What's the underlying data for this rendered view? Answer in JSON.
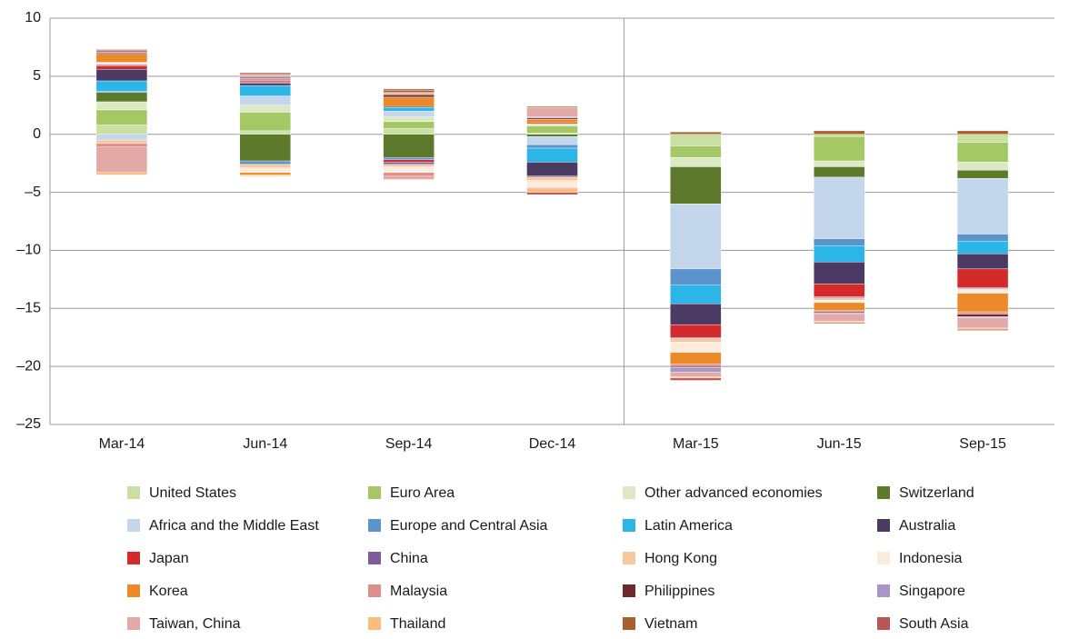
{
  "chart_data": {
    "type": "stacked_bar",
    "categories": [
      "Mar-14",
      "Jun-14",
      "Sep-14",
      "Dec-14",
      "Mar-15",
      "Jun-15",
      "Sep-15"
    ],
    "ylim": [
      -25,
      10
    ],
    "yticks": [
      {
        "value": -25,
        "label": "–25"
      },
      {
        "value": -20,
        "label": "–20"
      },
      {
        "value": -15,
        "label": "–15"
      },
      {
        "value": -10,
        "label": "–10"
      },
      {
        "value": -5,
        "label": "–5"
      },
      0,
      5,
      10
    ],
    "grid": true,
    "series": [
      {
        "name": "United States",
        "color": "#c9dfa4",
        "values": [
          0.8,
          0.3,
          0.5,
          0.1,
          -1.0,
          -0.2,
          -0.7
        ]
      },
      {
        "name": "Euro Area",
        "color": "#a4c964",
        "values": [
          1.3,
          1.6,
          0.6,
          0.6,
          -1.0,
          -2.1,
          -1.7
        ]
      },
      {
        "name": "Other advanced economies",
        "color": "#dde9c5",
        "values": [
          0.7,
          0.6,
          0.4,
          0.2,
          -0.8,
          -0.5,
          -0.7
        ]
      },
      {
        "name": "Switzerland",
        "color": "#5d7a2c",
        "values": [
          0.8,
          -2.3,
          -2.0,
          -0.2,
          -3.2,
          -0.9,
          -0.7
        ]
      },
      {
        "name": "Africa and the Middle East",
        "color": "#c4d6ec",
        "values": [
          -0.5,
          0.8,
          0.5,
          -0.7,
          -5.6,
          -5.3,
          -4.8
        ]
      },
      {
        "name": "Europe and Central Asia",
        "color": "#5b93cc",
        "values": [
          0.1,
          -0.3,
          -0.2,
          -0.3,
          -1.4,
          -0.6,
          -0.6
        ]
      },
      {
        "name": "Latin America",
        "color": "#2cb6e8",
        "values": [
          0.9,
          0.9,
          0.3,
          -1.2,
          -1.6,
          -1.4,
          -1.1
        ]
      },
      {
        "name": "Australia",
        "color": "#4b3a63",
        "values": [
          1.0,
          0.2,
          0.1,
          -1.2,
          -1.8,
          -1.9,
          -1.3
        ]
      },
      {
        "name": "Japan",
        "color": "#d42a2c",
        "values": [
          0.3,
          0.1,
          -0.2,
          0.1,
          -1.1,
          -1.1,
          -1.6
        ]
      },
      {
        "name": "China",
        "color": "#7e5c9e",
        "values": [
          0.1,
          0.1,
          -0.2,
          -0.1,
          -0.1,
          -0.1,
          -0.1
        ]
      },
      {
        "name": "Hong Kong",
        "color": "#f9c89a",
        "values": [
          -0.3,
          -0.3,
          -0.2,
          -0.3,
          -0.3,
          -0.2,
          -0.1
        ]
      },
      {
        "name": "Indonesia",
        "color": "#fdebdc",
        "values": [
          0.2,
          -0.4,
          -0.5,
          -0.6,
          -0.9,
          -0.2,
          -0.3
        ]
      },
      {
        "name": "Korea",
        "color": "#ec8a2a",
        "values": [
          0.7,
          -0.2,
          0.8,
          0.3,
          -1.0,
          -0.7,
          -1.6
        ]
      },
      {
        "name": "Malaysia",
        "color": "#dc8e8a",
        "values": [
          -0.3,
          0.2,
          -0.3,
          -0.1,
          -0.2,
          -0.1,
          -0.2
        ]
      },
      {
        "name": "Philippines",
        "color": "#6e2a2a",
        "values": [
          0.1,
          0.1,
          0.2,
          0.1,
          -0.1,
          -0.1,
          -0.2
        ]
      },
      {
        "name": "Singapore",
        "color": "#a995c7",
        "values": [
          0.1,
          0.1,
          0.1,
          0.1,
          -0.4,
          -0.1,
          -0.1
        ]
      },
      {
        "name": "Taiwan, China",
        "color": "#e3a9a7",
        "values": [
          -2.2,
          0.1,
          -0.3,
          0.8,
          -0.4,
          -0.6,
          -0.9
        ]
      },
      {
        "name": "Thailand",
        "color": "#fcbd7c",
        "values": [
          -0.2,
          -0.1,
          0.1,
          -0.3,
          -0.1,
          -0.1,
          -0.1
        ]
      },
      {
        "name": "Vietnam",
        "color": "#a8612c",
        "values": [
          0.1,
          0.1,
          0.2,
          0.1,
          0.2,
          0.3,
          0.3
        ]
      },
      {
        "name": "South Asia",
        "color": "#b85654",
        "values": [
          0.1,
          0.1,
          0.1,
          -0.2,
          -0.2,
          -0.1,
          -0.1
        ]
      }
    ]
  }
}
